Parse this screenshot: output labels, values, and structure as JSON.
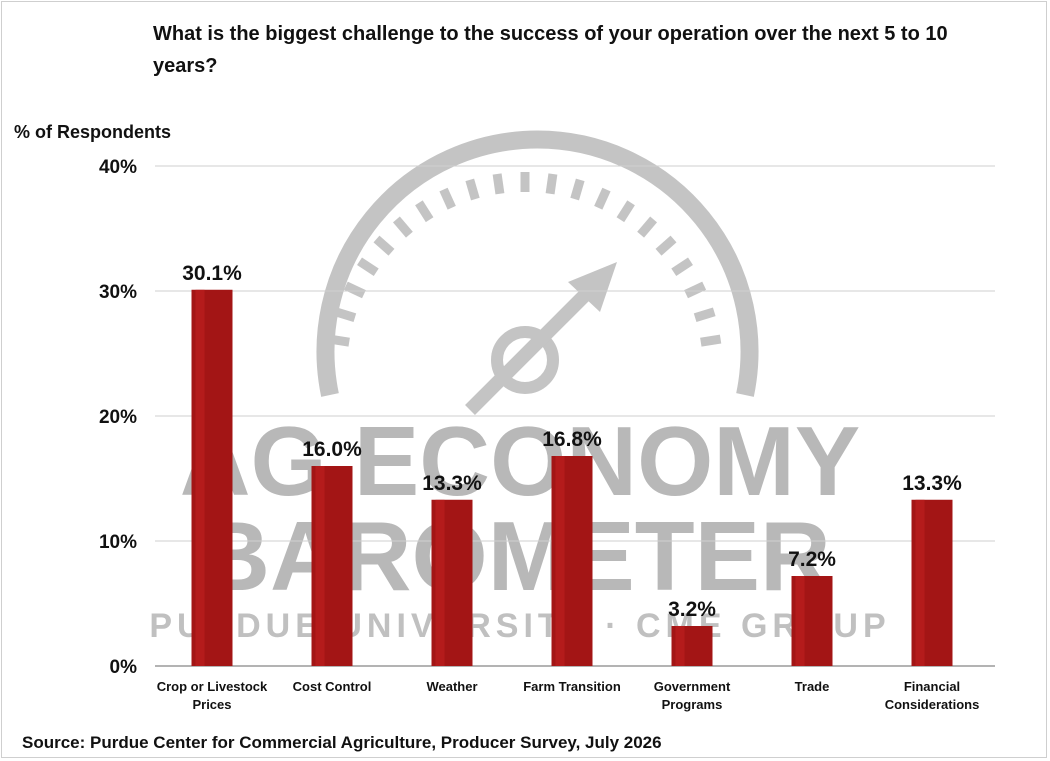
{
  "title": "What is the biggest challenge to the success of your operation over the next 5 to 10 years?",
  "ylabel": "% of Respondents",
  "source": "Source: Purdue Center for Commercial Agriculture, Producer Survey, July 2026",
  "watermark": {
    "line1": "AG ECONOMY",
    "line2": "BAROMETER",
    "line3": "PURDUE UNIVERSITY · CME GROUP"
  },
  "colors": {
    "bar": "#a31515",
    "bar_light": "#c02020",
    "grid": "#cfcfcf",
    "watermark": "#b5b5b5"
  },
  "chart_data": {
    "type": "bar",
    "title": "What is the biggest challenge to the success of your operation over the next 5 to 10 years?",
    "ylabel": "% of Respondents",
    "xlabel": "",
    "categories": [
      [
        "Crop or Livestock",
        "Prices"
      ],
      [
        "Cost Control"
      ],
      [
        "Weather"
      ],
      [
        "Farm Transition"
      ],
      [
        "Government",
        "Programs"
      ],
      [
        "Trade"
      ],
      [
        "Financial",
        "Considerations"
      ]
    ],
    "values": [
      30.1,
      16.0,
      13.3,
      16.8,
      3.2,
      7.2,
      13.3
    ],
    "data_labels": [
      "30.1%",
      "16.0%",
      "13.3%",
      "16.8%",
      "3.2%",
      "7.2%",
      "13.3%"
    ],
    "yticks": [
      "0%",
      "10%",
      "20%",
      "30%",
      "40%"
    ],
    "ytick_values": [
      0,
      10,
      20,
      30,
      40
    ],
    "ylim": [
      0,
      40
    ],
    "grid": true
  }
}
